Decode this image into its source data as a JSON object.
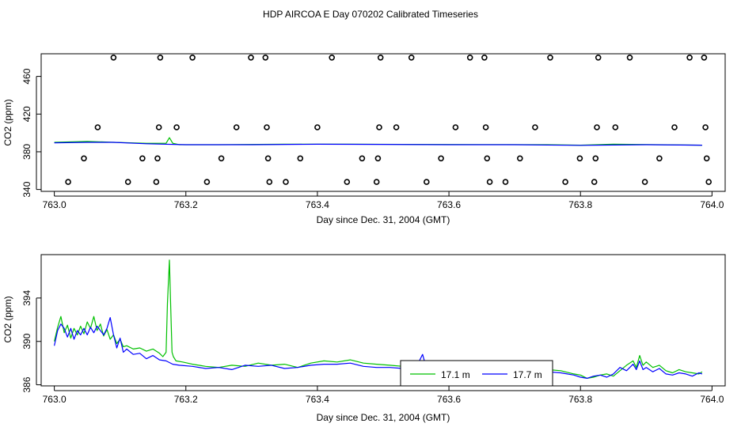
{
  "title": "HDP AIRCOA E  Day 070202  Calibrated Timeseries",
  "chart_data": [
    {
      "type": "scatter",
      "xlabel": "Day since Dec. 31, 2004 (GMT)",
      "ylabel": "CO2 (ppm)",
      "xlim": [
        762.98,
        764.02
      ],
      "ylim": [
        338,
        484
      ],
      "xticks": [
        "763.0",
        "763.2",
        "763.4",
        "763.6",
        "763.8",
        "764.0"
      ],
      "yticks": [
        "340",
        "380",
        "420",
        "460"
      ],
      "points": [
        [
          763.021,
          348
        ],
        [
          763.045,
          373
        ],
        [
          763.066,
          406
        ],
        [
          763.09,
          480
        ],
        [
          763.112,
          348
        ],
        [
          763.134,
          373
        ],
        [
          763.155,
          348
        ],
        [
          763.157,
          373
        ],
        [
          763.159,
          406
        ],
        [
          763.161,
          480
        ],
        [
          763.186,
          406
        ],
        [
          763.21,
          480
        ],
        [
          763.232,
          348
        ],
        [
          763.254,
          373
        ],
        [
          763.277,
          406
        ],
        [
          763.299,
          480
        ],
        [
          763.321,
          480
        ],
        [
          763.323,
          406
        ],
        [
          763.325,
          373
        ],
        [
          763.327,
          348
        ],
        [
          763.352,
          348
        ],
        [
          763.374,
          373
        ],
        [
          763.4,
          406
        ],
        [
          763.422,
          480
        ],
        [
          763.445,
          348
        ],
        [
          763.468,
          373
        ],
        [
          763.49,
          348
        ],
        [
          763.492,
          373
        ],
        [
          763.494,
          406
        ],
        [
          763.496,
          480
        ],
        [
          763.52,
          406
        ],
        [
          763.543,
          480
        ],
        [
          763.566,
          348
        ],
        [
          763.588,
          373
        ],
        [
          763.61,
          406
        ],
        [
          763.632,
          480
        ],
        [
          763.654,
          480
        ],
        [
          763.656,
          406
        ],
        [
          763.658,
          373
        ],
        [
          763.662,
          348
        ],
        [
          763.686,
          348
        ],
        [
          763.708,
          373
        ],
        [
          763.731,
          406
        ],
        [
          763.754,
          480
        ],
        [
          763.777,
          348
        ],
        [
          763.799,
          373
        ],
        [
          763.821,
          348
        ],
        [
          763.823,
          373
        ],
        [
          763.825,
          406
        ],
        [
          763.827,
          480
        ],
        [
          763.853,
          406
        ],
        [
          763.875,
          480
        ],
        [
          763.898,
          348
        ],
        [
          763.92,
          373
        ],
        [
          763.943,
          406
        ],
        [
          763.966,
          480
        ],
        [
          763.988,
          480
        ],
        [
          763.99,
          406
        ],
        [
          763.992,
          373
        ],
        [
          763.995,
          348
        ]
      ],
      "series": [
        {
          "color": "#00c000",
          "x": [
            763.0,
            763.05,
            763.09,
            763.14,
            763.17,
            763.175,
            763.18,
            763.19,
            763.25,
            763.35,
            763.45,
            763.55,
            763.65,
            763.75,
            763.8,
            763.85,
            763.92,
            763.985
          ],
          "values": [
            390,
            391,
            390,
            389,
            389,
            395,
            389,
            387.5,
            387.5,
            388,
            388,
            387.8,
            387.7,
            387.5,
            387,
            388,
            387.5,
            387
          ]
        },
        {
          "color": "#0000ff",
          "x": [
            763.0,
            763.05,
            763.09,
            763.14,
            763.2,
            763.3,
            763.4,
            763.5,
            763.6,
            763.7,
            763.8,
            763.9,
            763.985
          ],
          "values": [
            389.5,
            390,
            390,
            388.5,
            387.5,
            387.5,
            388,
            387.8,
            387.5,
            387.5,
            386.8,
            387.5,
            387
          ]
        }
      ]
    },
    {
      "type": "line",
      "xlabel": "Day since Dec. 31, 2004 (GMT)",
      "ylabel": "CO2 (ppm)",
      "xlim": [
        762.98,
        764.02
      ],
      "ylim": [
        385.9,
        398.0
      ],
      "xticks": [
        "763.0",
        "763.2",
        "763.4",
        "763.6",
        "763.8",
        "764.0"
      ],
      "yticks": [
        "386",
        "390",
        "394"
      ],
      "legend_position": "bottom-center",
      "series": [
        {
          "name": "17.1 m",
          "color": "#00c000",
          "x": [
            763.0,
            763.005,
            763.01,
            763.015,
            763.02,
            763.025,
            763.03,
            763.035,
            763.04,
            763.045,
            763.05,
            763.055,
            763.06,
            763.065,
            763.07,
            763.075,
            763.08,
            763.085,
            763.09,
            763.095,
            763.1,
            763.105,
            763.11,
            763.12,
            763.13,
            763.14,
            763.15,
            763.16,
            763.165,
            763.17,
            763.172,
            763.175,
            763.177,
            763.179,
            763.181,
            763.185,
            763.195,
            763.21,
            763.23,
            763.25,
            763.27,
            763.29,
            763.31,
            763.33,
            763.35,
            763.37,
            763.39,
            763.41,
            763.43,
            763.45,
            763.47,
            763.49,
            763.51,
            763.53,
            763.55,
            763.57,
            763.59,
            763.61,
            763.63,
            763.65,
            763.67,
            763.69,
            763.71,
            763.73,
            763.75,
            763.77,
            763.79,
            763.8,
            763.81,
            763.82,
            763.83,
            763.84,
            763.85,
            763.86,
            763.87,
            763.88,
            763.885,
            763.89,
            763.895,
            763.9,
            763.91,
            763.92,
            763.93,
            763.94,
            763.95,
            763.96,
            763.97,
            763.98,
            763.985
          ],
          "values": [
            390.0,
            391.3,
            392.3,
            390.8,
            391.5,
            390.3,
            391.2,
            390.6,
            391.4,
            390.7,
            391.8,
            391.2,
            392.3,
            391.0,
            391.6,
            390.5,
            391.1,
            390.2,
            390.6,
            389.8,
            390.2,
            389.5,
            389.6,
            389.3,
            389.4,
            389.1,
            389.3,
            388.9,
            388.6,
            389.0,
            393.5,
            397.5,
            393.0,
            389.0,
            388.6,
            388.2,
            388.1,
            387.9,
            387.7,
            387.6,
            387.8,
            387.7,
            388.0,
            387.8,
            387.9,
            387.6,
            388.0,
            388.2,
            388.1,
            388.3,
            388.0,
            387.9,
            387.8,
            387.7,
            387.8,
            387.7,
            387.6,
            387.6,
            387.7,
            387.5,
            387.6,
            387.5,
            387.4,
            387.3,
            387.4,
            387.3,
            387.0,
            386.9,
            386.6,
            386.7,
            386.9,
            387.0,
            386.8,
            387.3,
            387.8,
            388.2,
            387.6,
            388.7,
            387.8,
            388.1,
            387.6,
            387.8,
            387.3,
            387.1,
            387.4,
            387.2,
            387.1,
            387.0,
            387.2
          ]
        },
        {
          "name": "17.7 m",
          "color": "#0000ff",
          "x": [
            763.0,
            763.005,
            763.01,
            763.015,
            763.02,
            763.025,
            763.03,
            763.035,
            763.04,
            763.045,
            763.05,
            763.055,
            763.06,
            763.065,
            763.07,
            763.075,
            763.08,
            763.085,
            763.09,
            763.095,
            763.1,
            763.105,
            763.11,
            763.12,
            763.13,
            763.14,
            763.15,
            763.16,
            763.17,
            763.18,
            763.19,
            763.21,
            763.23,
            763.25,
            763.27,
            763.29,
            763.31,
            763.33,
            763.35,
            763.37,
            763.39,
            763.41,
            763.43,
            763.45,
            763.47,
            763.49,
            763.51,
            763.53,
            763.55,
            763.555,
            763.56,
            763.565,
            763.57,
            763.59,
            763.61,
            763.63,
            763.65,
            763.67,
            763.69,
            763.71,
            763.73,
            763.75,
            763.77,
            763.79,
            763.8,
            763.81,
            763.82,
            763.83,
            763.84,
            763.85,
            763.86,
            763.87,
            763.88,
            763.885,
            763.89,
            763.895,
            763.9,
            763.91,
            763.92,
            763.93,
            763.94,
            763.95,
            763.96,
            763.97,
            763.98,
            763.985
          ],
          "values": [
            389.6,
            391.0,
            391.6,
            391.2,
            390.4,
            391.2,
            390.2,
            391.0,
            390.6,
            391.2,
            390.6,
            391.3,
            390.8,
            391.4,
            391.0,
            390.6,
            391.2,
            392.2,
            390.6,
            389.4,
            390.3,
            389.0,
            389.3,
            388.8,
            388.9,
            388.4,
            388.7,
            388.3,
            388.2,
            387.9,
            387.8,
            387.7,
            387.5,
            387.6,
            387.4,
            387.8,
            387.7,
            387.8,
            387.5,
            387.6,
            387.8,
            387.9,
            387.9,
            388.0,
            387.7,
            387.6,
            387.6,
            387.5,
            387.6,
            388.2,
            388.8,
            387.7,
            387.6,
            387.4,
            387.5,
            387.6,
            387.5,
            387.4,
            387.4,
            387.3,
            387.2,
            387.2,
            387.1,
            386.9,
            386.7,
            386.6,
            386.8,
            386.9,
            386.7,
            387.0,
            387.6,
            387.3,
            387.9,
            387.4,
            388.2,
            387.4,
            387.6,
            387.2,
            387.5,
            387.0,
            386.9,
            387.1,
            387.0,
            386.8,
            387.1,
            387.0
          ]
        }
      ]
    }
  ]
}
